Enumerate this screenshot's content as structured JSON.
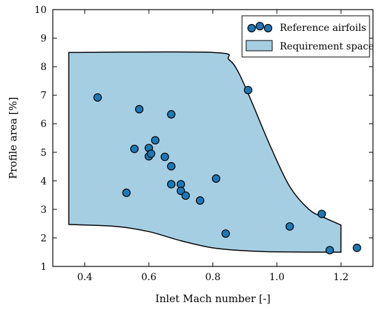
{
  "chart_data": {
    "type": "scatter",
    "xlabel": "Inlet Mach number [-]",
    "ylabel": "Profile area [%]",
    "xlim": [
      0.3,
      1.3
    ],
    "ylim": [
      1,
      10
    ],
    "xticks": [
      0.4,
      0.6,
      0.8,
      1.0,
      1.2
    ],
    "xtick_labels": [
      "0.4",
      "0.6",
      "0.8",
      "1.0",
      "1.2"
    ],
    "yticks": [
      1,
      2,
      3,
      4,
      5,
      6,
      7,
      8,
      9,
      10
    ],
    "ytick_labels": [
      "1",
      "2",
      "3",
      "4",
      "5",
      "6",
      "7",
      "8",
      "9",
      "10"
    ],
    "grid": false,
    "legend_position": "top-right",
    "series": [
      {
        "name": "Reference airfoils",
        "kind": "scatter",
        "color": "#1f77b4",
        "x": [
          0.44,
          0.53,
          0.555,
          0.57,
          0.6,
          0.6,
          0.607,
          0.62,
          0.65,
          0.67,
          0.67,
          0.67,
          0.7,
          0.7,
          0.715,
          0.76,
          0.81,
          0.84,
          0.91,
          1.04,
          1.14,
          1.165,
          1.25
        ],
        "y": [
          6.92,
          3.58,
          5.12,
          6.51,
          4.86,
          5.15,
          4.95,
          5.42,
          4.84,
          6.33,
          4.51,
          3.88,
          3.88,
          3.65,
          3.48,
          3.31,
          4.08,
          2.15,
          7.18,
          2.4,
          2.84,
          1.57,
          1.65
        ]
      },
      {
        "name": "Requirement space",
        "kind": "area",
        "color": "#a6cee3",
        "upper": [
          [
            0.35,
            8.5
          ],
          [
            0.8,
            8.5
          ],
          [
            0.85,
            8.25
          ],
          [
            0.88,
            7.8
          ],
          [
            0.92,
            6.8
          ],
          [
            0.98,
            5.2
          ],
          [
            1.04,
            3.8
          ],
          [
            1.1,
            3.0
          ],
          [
            1.15,
            2.7
          ],
          [
            1.2,
            2.45
          ]
        ],
        "lower": [
          [
            0.35,
            2.47
          ],
          [
            0.5,
            2.4
          ],
          [
            0.6,
            2.22
          ],
          [
            0.7,
            1.9
          ],
          [
            0.8,
            1.65
          ],
          [
            0.9,
            1.55
          ],
          [
            1.0,
            1.51
          ],
          [
            1.2,
            1.5
          ]
        ]
      }
    ]
  }
}
